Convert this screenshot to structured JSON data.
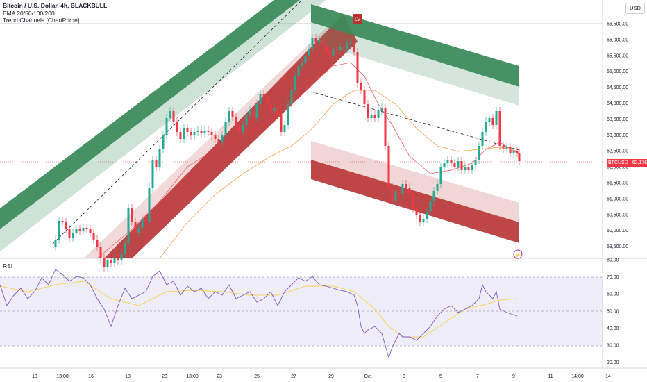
{
  "legend": {
    "title": "Bitcoin / U.S. Dollar, 4h, BLACKBULL",
    "ema": "EMA 20/50/100/200",
    "channels": "Trend Channels [ChartPrime]"
  },
  "rsi_label": "RSI",
  "currency_button": "USD",
  "current_price": {
    "symbol": "BTCUSD",
    "value": "62,176.39"
  },
  "colors": {
    "bull": "#22ab94",
    "bear": "#f23645",
    "green_channel": "#3d8c5c",
    "red_channel": "#b83232",
    "ema_fast": "#f23645",
    "ema_slow": "#f7a04b",
    "rsi_line": "#7e57c2",
    "rsi_ma": "#f7d358"
  },
  "price_axis": {
    "ticks": [
      "66,500.00",
      "66,000.00",
      "65,500.00",
      "65,000.00",
      "64,500.00",
      "64,000.00",
      "63,500.00",
      "63,000.00",
      "62,500.00",
      "62,000.00",
      "61,500.00",
      "61,000.00",
      "60,500.00",
      "60,000.00",
      "59,500.00"
    ]
  },
  "rsi_axis": {
    "ticks": [
      "80.00",
      "70.00",
      "60.00",
      "50.00",
      "40.00",
      "30.00",
      "20.00"
    ]
  },
  "time_axis": {
    "ticks": [
      "13",
      "13:00",
      "16",
      "18",
      "20",
      "13:00",
      "23",
      "25",
      "27",
      "29",
      "Oct",
      "3",
      "5",
      "7",
      "9",
      "11",
      "14:00",
      "14"
    ]
  },
  "chart_data": {
    "type": "candlestick",
    "title": "Bitcoin / U.S. Dollar, 4h, BLACKBULL",
    "ylim": [
      59300,
      66800
    ],
    "rsi_ylim": [
      18,
      82
    ],
    "rsi_levels": [
      70,
      50,
      30
    ],
    "last_price": 62176.39,
    "marker_label": "LV"
  }
}
